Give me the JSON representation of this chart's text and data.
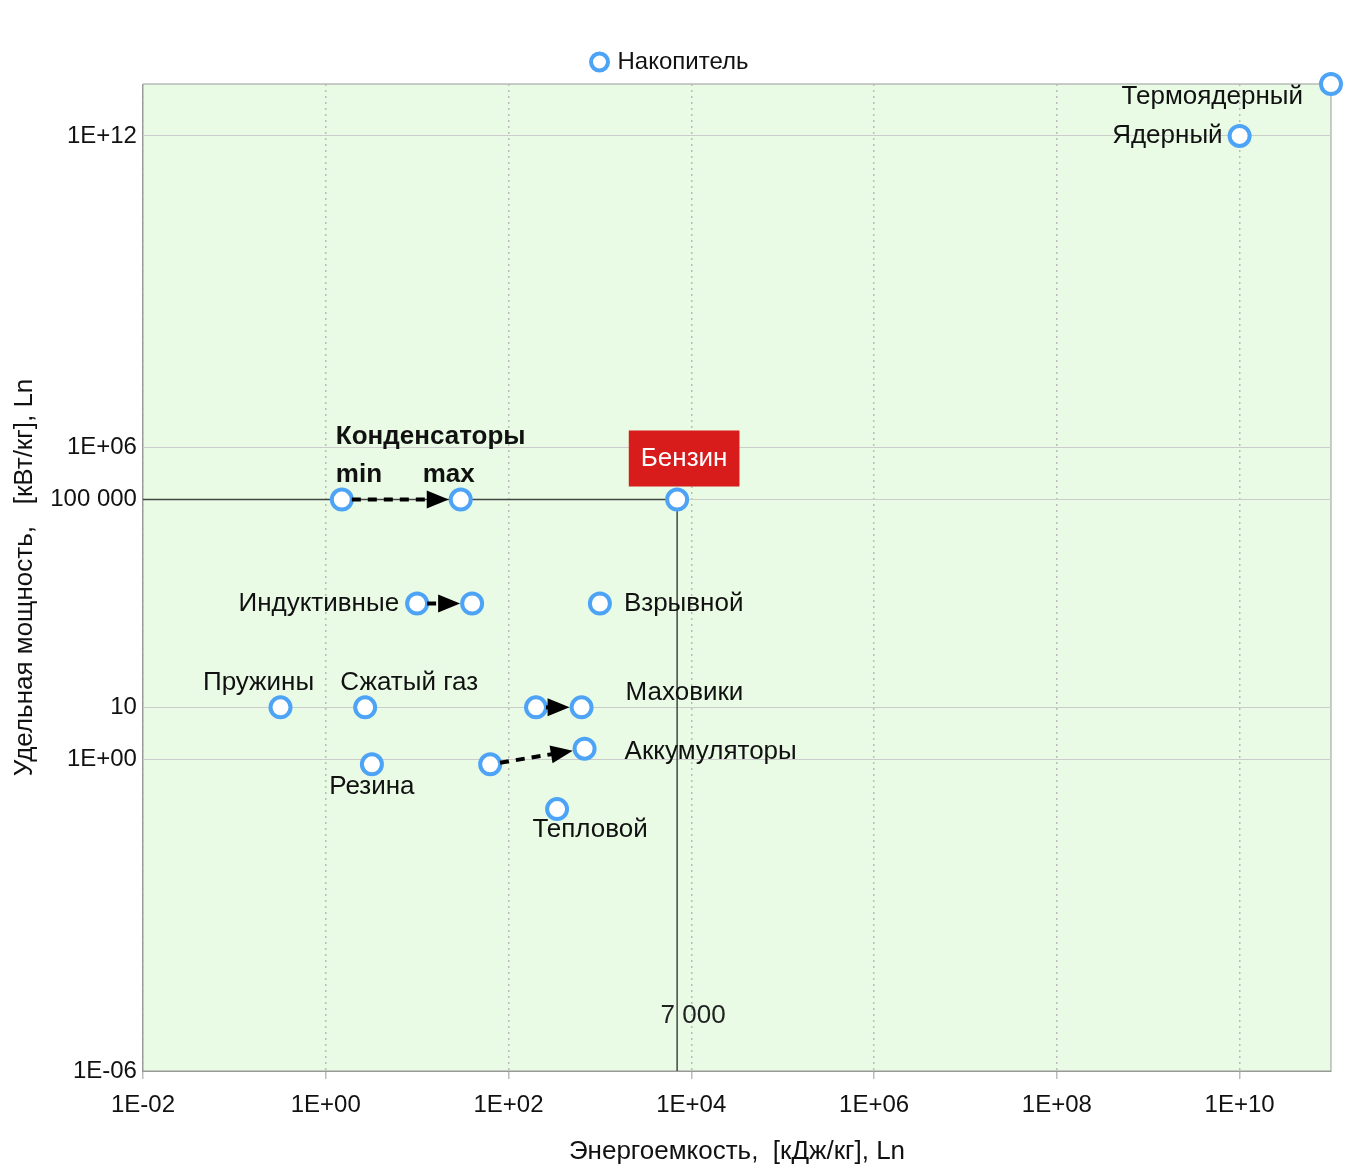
{
  "chart_data": {
    "type": "scatter",
    "xlabel": "Энергоемкость,  [кДж/кг], Ln",
    "ylabel": "Удельная мощность,   [кВт/кг], Ln",
    "log": "xy",
    "legend": "top",
    "marker": "circle",
    "grid": true,
    "xlim": [
      0.01,
      100000000000.0
    ],
    "ylim": [
      1e-06,
      10000000000000.0
    ],
    "xticks": [
      {
        "value": 0.01,
        "label": "1E-02"
      },
      {
        "value": 1,
        "label": "1E+00"
      },
      {
        "value": 100,
        "label": "1E+02"
      },
      {
        "value": 10000,
        "label": "1E+04"
      },
      {
        "value": 1000000,
        "label": "1E+06"
      },
      {
        "value": 100000000,
        "label": "1E+08"
      },
      {
        "value": 10000000000,
        "label": "1E+10"
      }
    ],
    "yticks": [
      {
        "value": 1e-06,
        "label": "1E-06"
      },
      {
        "value": 1,
        "label": "1E+00"
      },
      10,
      {
        "value": 100000,
        "label": "100 000"
      },
      {
        "value": 1000000,
        "label": "1E+06"
      },
      {
        "value": 1000000000000.0,
        "label": "1E+12"
      }
    ],
    "series": [
      {
        "name": "Накопитель",
        "color": "#4da3f5",
        "x": [
          1.5,
          30,
          7000,
          10,
          40,
          1000,
          0.32,
          2.7,
          200,
          630,
          63,
          680,
          3.2,
          340,
          10000000000.0,
          100000000000.0
        ],
        "values": [
          100000,
          100000,
          100000,
          1000,
          1000,
          1000,
          10,
          10,
          10,
          10,
          0.8,
          1.6,
          0.8,
          0.11,
          1000000000000.0,
          10000000000000.0
        ]
      }
    ],
    "ref_lines": [
      {
        "axis": "y",
        "value": 100000,
        "color": "#444444"
      },
      {
        "axis": "x",
        "value": 7000,
        "label": "7 000",
        "color": "#444444"
      }
    ],
    "annotations": [
      {
        "text": "Конденсаторы",
        "x": 1.5,
        "y": 100000
      },
      {
        "text": "min",
        "x": 1.5,
        "y": 100000
      },
      {
        "text": "max",
        "x": 30,
        "y": 100000
      },
      {
        "text": "Бензин",
        "x": 7000,
        "y": 100000
      },
      {
        "text": "Индуктивные",
        "x": 10,
        "y": 1000
      },
      {
        "text": "Взрывной",
        "x": 1000,
        "y": 1000
      },
      {
        "text": "Пружины",
        "x": 0.32,
        "y": 10
      },
      {
        "text": "Сжатый газ",
        "x": 2.7,
        "y": 10
      },
      {
        "text": "Маховики",
        "x": 630,
        "y": 10
      },
      {
        "text": "Аккумуляторы",
        "x": 680,
        "y": 1.6
      },
      {
        "text": "Резина",
        "x": 3.2,
        "y": 0.8
      },
      {
        "text": "Тепловой",
        "x": 340,
        "y": 0.11
      },
      {
        "text": "Ядерный",
        "x": 10000000000.0,
        "y": 1000000000000.0
      },
      {
        "text": "Термоядерный",
        "x": 100000000000.0,
        "y": 10000000000000.0
      }
    ]
  }
}
